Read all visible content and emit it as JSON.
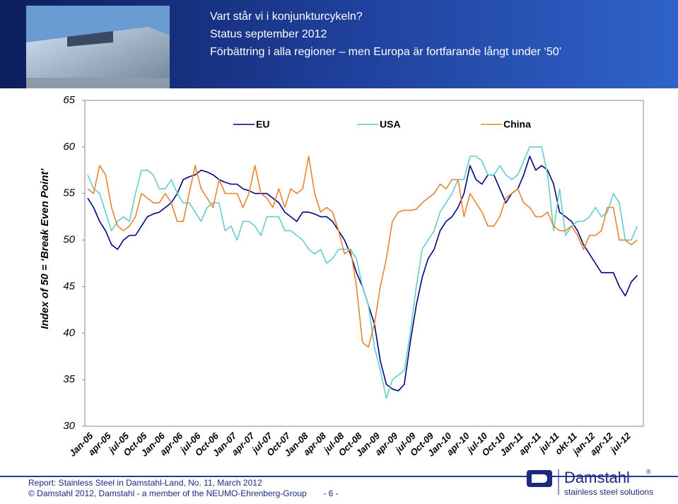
{
  "header": {
    "lines": [
      "Vart står vi i konjunkturcykeln?",
      "Status september 2012",
      "Förbättring i alla regioner – men Europa är fortfarande långt under ‘50’"
    ]
  },
  "chart_data": {
    "type": "line",
    "y_label": "Index of 50 = ‘Break Even Point’",
    "categories": [
      "Jan-05",
      null,
      null,
      "apr-05",
      null,
      null,
      "jul-05",
      null,
      null,
      "Oct-05",
      null,
      null,
      "Jan-06",
      null,
      null,
      "apr-06",
      null,
      null,
      "jul-06",
      null,
      null,
      "Oct-06",
      null,
      null,
      "Jan-07",
      null,
      null,
      "apr-07",
      null,
      null,
      "jul-07",
      null,
      null,
      "Oct-07",
      null,
      null,
      "Jan-08",
      null,
      null,
      "apr-08",
      null,
      null,
      "jul-08",
      null,
      null,
      "Oct-08",
      null,
      null,
      "Jan-09",
      null,
      null,
      "apr-09",
      null,
      null,
      "jul-09",
      null,
      null,
      "Oct-09",
      null,
      null,
      "Jan-10",
      null,
      null,
      "apr-10",
      null,
      null,
      "jul-10",
      null,
      null,
      "Oct-10",
      null,
      null,
      "Jan-11",
      null,
      null,
      "apr-11",
      null,
      null,
      "jul-11",
      null,
      null,
      "okt-11",
      null,
      null,
      "jan-12",
      null,
      null,
      "apr-12",
      null,
      null,
      "jul-12",
      null,
      null
    ],
    "series": [
      {
        "name": "EU",
        "color": "#000080",
        "values": [
          54.5,
          53.5,
          52,
          51,
          49.5,
          49,
          50,
          50.5,
          50.5,
          51.5,
          52.5,
          52.8,
          53,
          53.5,
          54,
          55,
          56.5,
          56.8,
          57,
          57.5,
          57.3,
          57,
          56.5,
          56.2,
          56,
          56,
          55.5,
          55.3,
          55,
          55,
          55,
          54.5,
          54,
          53,
          52.5,
          52,
          53,
          53,
          52.8,
          52.5,
          52.5,
          52,
          51,
          50,
          48.5,
          46.5,
          45,
          43,
          41,
          37,
          34.5,
          34,
          33.8,
          34.5,
          39,
          43,
          46,
          48,
          49,
          51,
          52,
          52.5,
          53.5,
          55,
          58,
          56.5,
          56,
          57,
          57,
          55.5,
          54,
          55,
          55.5,
          57,
          59,
          57.5,
          58,
          57.5,
          56,
          53,
          52.5,
          52,
          51,
          49.5,
          48.5,
          47.5,
          46.5,
          46.5,
          46.5,
          45,
          44,
          45.5,
          46.2
        ]
      },
      {
        "name": "USA",
        "color": "#66cccc",
        "values": [
          57,
          55.5,
          55,
          53,
          51,
          52,
          52.5,
          52,
          55,
          57.5,
          57.5,
          57,
          55.5,
          55.5,
          56.5,
          55,
          54,
          54,
          53,
          52,
          53.5,
          54,
          54,
          51,
          51.5,
          50,
          52,
          52,
          51.5,
          50.5,
          52.5,
          52.5,
          52.5,
          51,
          51,
          50.5,
          50,
          49,
          48.5,
          49,
          47.5,
          48,
          49,
          49,
          49,
          48,
          45,
          43,
          38.5,
          36,
          33,
          35,
          35.5,
          36,
          40,
          45,
          49,
          50,
          51,
          53,
          54,
          55,
          56.5,
          56.5,
          59,
          59,
          58.5,
          57,
          57,
          58,
          57,
          56.5,
          57,
          58.5,
          60,
          60,
          60,
          57,
          51,
          55.5,
          50.5,
          51.5,
          52,
          52,
          52.5,
          53.5,
          52.5,
          53,
          55,
          54,
          50,
          50,
          51.5
        ]
      },
      {
        "name": "China",
        "color": "#e8842c",
        "values": [
          55.5,
          55,
          58,
          57,
          53.5,
          51.5,
          51,
          51.5,
          52.5,
          55,
          54.5,
          54,
          54,
          55,
          54,
          52,
          52,
          55,
          58,
          55.5,
          54.5,
          53.5,
          56.5,
          55,
          55,
          55,
          53.5,
          55,
          58,
          55,
          54.5,
          53.5,
          55.5,
          53.5,
          55.5,
          55,
          55.5,
          59,
          55,
          53,
          53.5,
          53,
          51,
          48.5,
          49,
          45,
          39,
          38.5,
          41,
          45,
          48,
          52,
          53,
          53.2,
          53.2,
          53.3,
          54,
          54.5,
          55,
          56,
          55.5,
          56.5,
          56.5,
          52.5,
          55,
          54,
          53,
          51.5,
          51.5,
          52.5,
          54.5,
          55,
          55.5,
          54,
          53.5,
          52.5,
          52.5,
          53,
          51.5,
          51,
          51,
          51.5,
          50.5,
          49,
          50.5,
          50.5,
          51,
          53.5,
          53.5,
          50,
          50,
          49.5,
          50
        ]
      }
    ],
    "ylim": [
      30,
      65
    ],
    "yticks": [
      30,
      35,
      40,
      45,
      50,
      55,
      60,
      65
    ],
    "grid": false,
    "legend": "top"
  },
  "footer": {
    "report": "Report: Stainless Steel in Damstahl-Land, No. 11, March 2012",
    "copyright": "© Damstahl 2012, Damstahl - a member of the NEUMO-Ehrenberg-Group",
    "page": "- 6 -"
  },
  "logo": {
    "name": "Damstahl",
    "mark": "®",
    "tagline": "stainless steel solutions"
  }
}
